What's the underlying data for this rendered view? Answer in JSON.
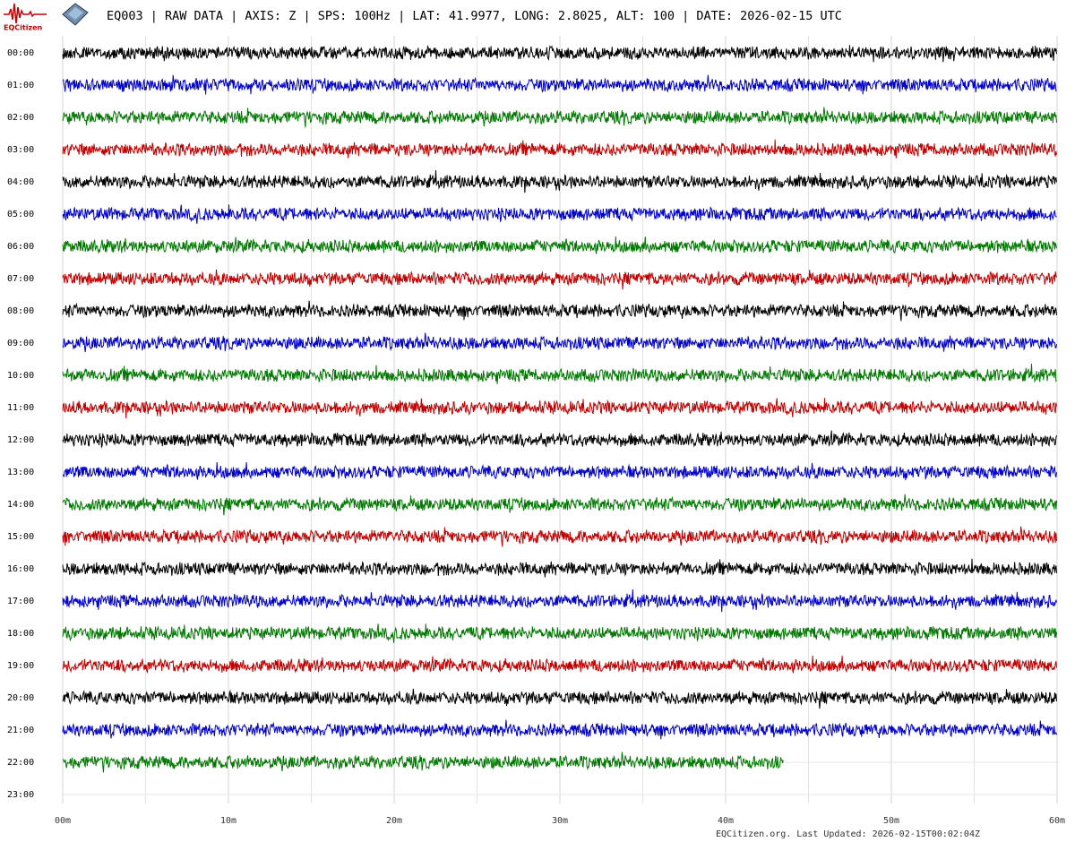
{
  "chart_data": {
    "type": "helicorder",
    "title": "EQ003 | RAW DATA | AXIS: Z | SPS: 100Hz | LAT: 41.9977, LONG: 2.8025, ALT: 100 | DATE: 2026-02-15 UTC",
    "logo_text": "EQCitizen",
    "footer": "EQCitizen.org. Last Updated: 2026-02-15T00:02:04Z",
    "categories": [
      "00:00",
      "01:00",
      "02:00",
      "03:00",
      "04:00",
      "05:00",
      "06:00",
      "07:00",
      "08:00",
      "09:00",
      "10:00",
      "11:00",
      "12:00",
      "13:00",
      "14:00",
      "15:00",
      "16:00",
      "17:00",
      "18:00",
      "19:00",
      "20:00",
      "21:00",
      "22:00",
      "23:00"
    ],
    "values": [
      60,
      60,
      60,
      60,
      60,
      60,
      60,
      60,
      60,
      60,
      60,
      60,
      60,
      60,
      60,
      60,
      60,
      60,
      60,
      60,
      60,
      60,
      43.5,
      null
    ],
    "colors": [
      "#000000",
      "#0000c8",
      "#007800",
      "#c00000"
    ],
    "xlim": [
      0,
      60
    ],
    "xticks": [
      {
        "value": 0,
        "label": "00m"
      },
      {
        "value": 10,
        "label": "10m"
      },
      {
        "value": 20,
        "label": "20m"
      },
      {
        "value": 30,
        "label": "30m"
      },
      {
        "value": 40,
        "label": "40m"
      },
      {
        "value": 50,
        "label": "50m"
      },
      {
        "value": 60,
        "label": "60m"
      }
    ],
    "minor_xticks": [
      5,
      15,
      25,
      35,
      45,
      55
    ],
    "grid": true
  }
}
